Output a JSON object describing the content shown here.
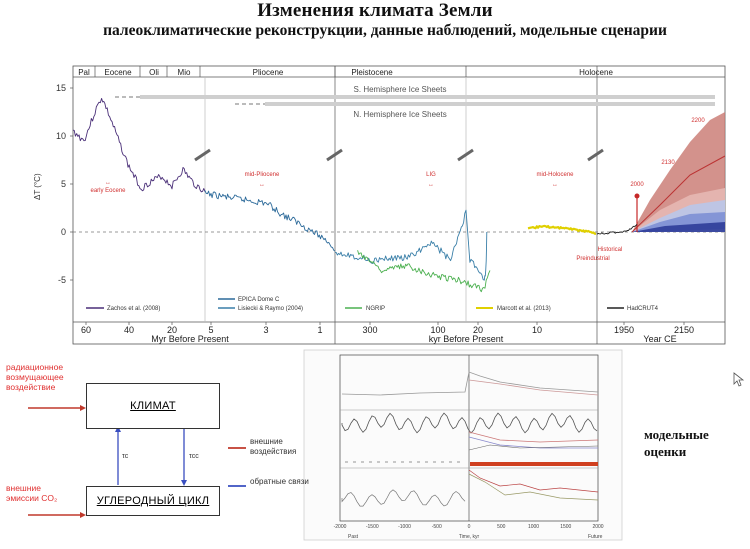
{
  "header": {
    "title": "Изменения климата Земли",
    "subtitle": "палеоклиматические реконструкции, данные наблюдений, модельные сценарии"
  },
  "chart_data": {
    "type": "line",
    "ylabel": "ΔT (°C)",
    "ylim": [
      -7,
      16
    ],
    "yticks": [
      "15",
      "10",
      "5",
      "0",
      "-5"
    ],
    "eras": [
      "Pal",
      "Eocene",
      "Oli",
      "Mio",
      "Pliocene",
      "Pleistocene",
      "Holocene"
    ],
    "panels": [
      {
        "xlabel": "Myr Before Present",
        "ticks": [
          "60",
          "40",
          "20",
          "5",
          "3",
          "1"
        ],
        "domain": [
          65,
          0
        ]
      },
      {
        "xlabel": "kyr Before Present",
        "ticks": [
          "300",
          "100",
          "20",
          "10"
        ],
        "domain": [
          800,
          0
        ]
      },
      {
        "xlabel": "Year CE",
        "ticks": [
          "1950",
          "2150"
        ],
        "domain": [
          1800,
          2300
        ]
      }
    ],
    "ice_sheets": [
      "S. Hemisphere Ice Sheets",
      "N. Hemisphere Ice Sheets"
    ],
    "annotations": [
      "early Eocene",
      "mid-Pliocene",
      "LIG",
      "mid-Holocene",
      "Preindustrial",
      "Historical",
      "2000",
      "2130",
      "2200"
    ],
    "series": [
      {
        "name": "Zachos et al. (2008)",
        "color": "#4a2f78",
        "x": [
          65,
          60,
          55,
          52,
          50,
          45,
          40,
          34,
          30,
          25,
          20,
          15,
          10,
          5
        ],
        "y": [
          10.5,
          9.5,
          12.5,
          14,
          13,
          10,
          7,
          4.5,
          5.2,
          5.8,
          4.8,
          6.5,
          5,
          4.2
        ]
      },
      {
        "name": "EPICA Dome C",
        "color": "#2c6a9a",
        "x": [
          5,
          4,
          3,
          2.5,
          2,
          1.5,
          1,
          0.8
        ],
        "y": [
          4,
          3.5,
          3,
          1.8,
          1,
          0,
          -1,
          -2
        ]
      },
      {
        "name": "Lisiecki & Raymo (2004)",
        "color": "#3a7fa8",
        "x": [
          800,
          600,
          400,
          300,
          200,
          120,
          100,
          50,
          25,
          20,
          15,
          12
        ],
        "y": [
          -2,
          -3,
          -2.5,
          -1,
          -3,
          2,
          -3,
          -4,
          -5,
          -4.5,
          -3,
          0
        ]
      },
      {
        "name": "NGRIP",
        "color": "#4cb050",
        "x": [
          120,
          100,
          80,
          60,
          40,
          20,
          15
        ],
        "y": [
          -2,
          -4,
          -3.5,
          -4.5,
          -5,
          -6,
          -4
        ]
      },
      {
        "name": "Marcott et al. (2013)",
        "color": "#e0d000",
        "x": [
          11,
          9,
          7,
          5,
          3,
          1,
          0.2
        ],
        "y": [
          0.3,
          0.6,
          0.5,
          0.4,
          0.2,
          0,
          -0.2
        ]
      },
      {
        "name": "HadCRUT4",
        "color": "#222222",
        "x": [
          1850,
          1900,
          1950,
          1990,
          2015
        ],
        "y": [
          -0.2,
          -0.1,
          0,
          0.3,
          0.8
        ]
      }
    ]
  },
  "diagram": {
    "climate_box": "КЛИМАТ",
    "carbon_box": "УГЛЕРОДНЫЙ ЦИКЛ",
    "tau_c": "τc",
    "tau_cc": "τcc",
    "forcing_label": "радиационное возмущающее воздействие",
    "emission_label": "внешние эмиссии CO₂",
    "legend_external": "внешние воздействия",
    "legend_feedback": "обратные связи",
    "color_external": "#c0392b",
    "color_feedback": "#3a4fc0"
  },
  "thumbnail": {
    "xlabels": [
      "Past",
      "Time, kyr",
      "Future"
    ],
    "xticks": [
      "-2000",
      "-1500",
      "-1000",
      "-500",
      "0",
      "500",
      "1000",
      "1500",
      "2000"
    ]
  },
  "models_label": "модельные оценки"
}
